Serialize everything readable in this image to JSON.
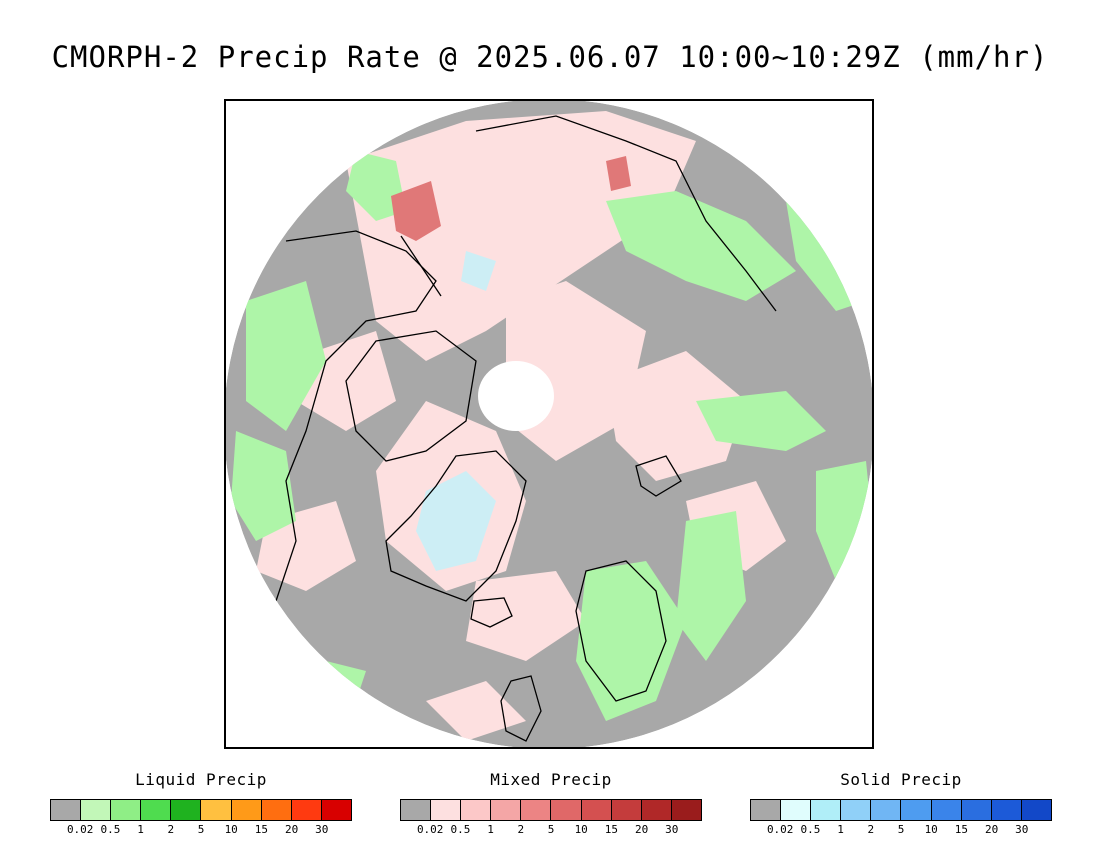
{
  "title": "CMORPH-2 Precip Rate @ 2025.06.07 10:00~10:29Z (mm/hr)",
  "colors": {
    "no_precip": "#a8a8a8",
    "light_pink": "#fde0e0",
    "light_green": "#aef5a8",
    "pole_white": "#ffffff",
    "ice_blue": "#cdeef5",
    "coast": "#000000"
  },
  "legends": {
    "liquid": {
      "title": "Liquid Precip",
      "colors": [
        "#a8a8a8",
        "#c2f7b8",
        "#8fee86",
        "#4fdc4f",
        "#1fb21f",
        "#ffc040",
        "#ff9a18",
        "#ff6e10",
        "#ff3a10",
        "#d80000"
      ],
      "ticks": [
        "0.02",
        "0.5",
        "1",
        "2",
        "5",
        "10",
        "15",
        "20",
        "30"
      ]
    },
    "mixed": {
      "title": "Mixed Precip",
      "colors": [
        "#a8a8a8",
        "#fde0e0",
        "#fcc8c8",
        "#f4a6a6",
        "#ec8484",
        "#e06868",
        "#d45050",
        "#c43c3c",
        "#b02828",
        "#9a1c1c"
      ],
      "ticks": [
        "0.02",
        "0.5",
        "1",
        "2",
        "5",
        "10",
        "15",
        "20",
        "30"
      ]
    },
    "solid": {
      "title": "Solid Precip",
      "colors": [
        "#a8a8a8",
        "#e0fdfd",
        "#b0eef8",
        "#90d0f8",
        "#70b6f4",
        "#4e9cf0",
        "#3a84ea",
        "#2a6ee0",
        "#1c5ad8",
        "#1248c8"
      ],
      "ticks": [
        "0.02",
        "0.5",
        "1",
        "2",
        "5",
        "10",
        "15",
        "20",
        "30"
      ]
    }
  }
}
